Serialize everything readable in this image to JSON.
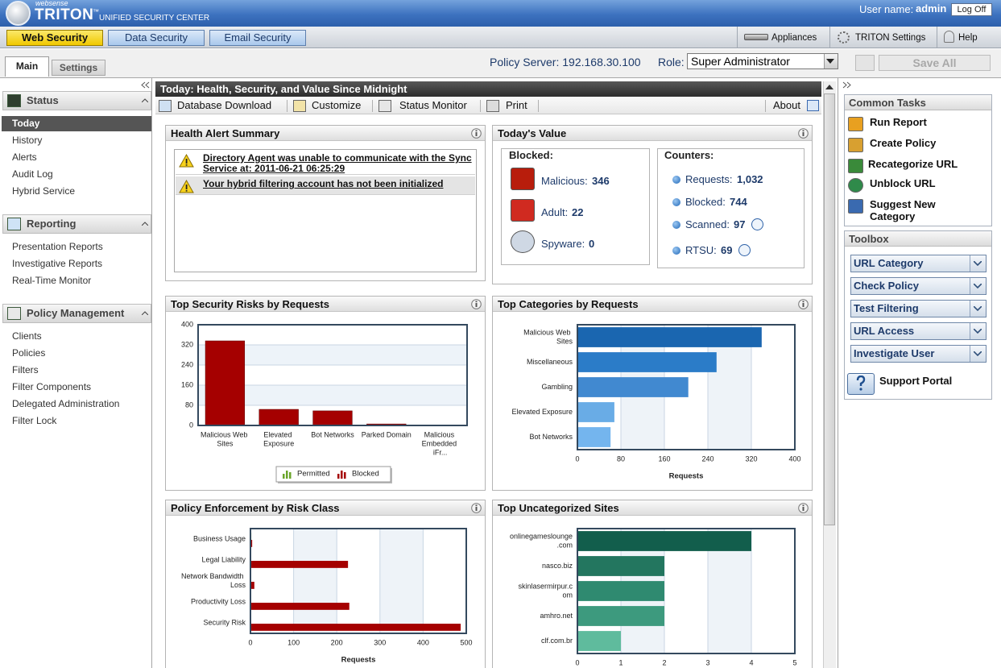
{
  "header": {
    "brand_small": "websense",
    "brand": "TRITON",
    "trademark": "™",
    "product": "UNIFIED SECURITY CENTER",
    "user_label": "User name:",
    "user": "admin",
    "logoff": "Log Off"
  },
  "modules": [
    "Web Security",
    "Data Security",
    "Email Security"
  ],
  "top_links": [
    "Appliances",
    "TRITON Settings",
    "Help"
  ],
  "tabs": [
    "Main",
    "Settings"
  ],
  "policy_server": "Policy Server: 192.168.30.100",
  "role_label": "Role:",
  "role": "Super Administrator",
  "save_all": "Save All",
  "nav": [
    {
      "title": "Status",
      "items": [
        "Today",
        "History",
        "Alerts",
        "Audit Log",
        "Hybrid Service"
      ]
    },
    {
      "title": "Reporting",
      "items": [
        "Presentation Reports",
        "Investigative Reports",
        "Real-Time Monitor"
      ]
    },
    {
      "title": "Policy Management",
      "items": [
        "Clients",
        "Policies",
        "Filters",
        "Filter Components",
        "Delegated Administration",
        "Filter Lock"
      ]
    }
  ],
  "main": {
    "title": "Today: Health, Security, and Value Since Midnight",
    "toolbar": [
      "Database Download",
      "Customize",
      "Status Monitor",
      "Print"
    ],
    "about": "About"
  },
  "health": {
    "title": "Health Alert Summary",
    "alerts": [
      "Directory Agent was unable to communicate with the Sync Service at: 2011-06-21 06:25:29",
      "Your hybrid filtering account has not been initialized"
    ]
  },
  "value": {
    "title": "Today's Value",
    "blocked_title": "Blocked:",
    "blocked": [
      {
        "label": "Malicious:",
        "value": 346
      },
      {
        "label": "Adult:",
        "value": 22
      },
      {
        "label": "Spyware:",
        "value": 0
      }
    ],
    "counters_title": "Counters:",
    "counters": [
      {
        "label": "Requests:",
        "value": "1,032"
      },
      {
        "label": "Blocked:",
        "value": 744
      },
      {
        "label": "Scanned:",
        "value": 97
      },
      {
        "label": "RTSU:",
        "value": 69
      }
    ]
  },
  "chart_data": [
    {
      "type": "bar",
      "title": "Top Security Risks by Requests",
      "categories": [
        "Malicious Web Sites",
        "Elevated Exposure",
        "Bot Networks",
        "Parked Domain",
        "Malicious Embedded iFr..."
      ],
      "series": [
        {
          "name": "Permitted",
          "color": "#6aa52a",
          "values": [
            0,
            0,
            0,
            0,
            0
          ]
        },
        {
          "name": "Blocked",
          "color": "#a50000",
          "values": [
            336,
            64,
            58,
            6,
            0
          ]
        }
      ],
      "ylim": [
        0,
        400
      ],
      "yticks": [
        0,
        80,
        160,
        240,
        320,
        400
      ],
      "grid": true,
      "legend": "bottom"
    },
    {
      "type": "bar",
      "orientation": "horizontal",
      "title": "Top Categories by Requests",
      "categories": [
        "Malicious Web Sites",
        "Miscellaneous",
        "Gambling",
        "Elevated Exposure",
        "Bot Networks"
      ],
      "values": [
        339,
        256,
        204,
        68,
        61
      ],
      "colors": [
        "#1a66b0",
        "#2b7cc8",
        "#4189d0",
        "#69ace6",
        "#74b5ee"
      ],
      "xlim": [
        0,
        400
      ],
      "xticks": [
        0,
        80,
        160,
        240,
        320,
        400
      ],
      "xlabel": "Requests",
      "grid": true
    },
    {
      "type": "bar",
      "orientation": "horizontal",
      "title": "Policy Enforcement by Risk Class",
      "categories": [
        "Business Usage",
        "Legal Liability",
        "Network Bandwidth Loss",
        "Productivity Loss",
        "Security Risk"
      ],
      "series": [
        {
          "color": "#6aa52a",
          "values": [
            2,
            0,
            0,
            0,
            0
          ]
        },
        {
          "color": "#a50000",
          "values": [
            4,
            226,
            9,
            229,
            487
          ]
        }
      ],
      "xlim": [
        0,
        500
      ],
      "xticks": [
        0,
        100,
        200,
        300,
        400,
        500
      ],
      "xlabel": "Requests",
      "grid": true
    },
    {
      "type": "bar",
      "orientation": "horizontal",
      "title": "Top Uncategorized Sites",
      "categories": [
        "onlinegameslounge.com",
        "nasco.biz",
        "skinlasermirpur.com",
        "amhro.net",
        "clf.com.br"
      ],
      "values": [
        4,
        2,
        2,
        2,
        1
      ],
      "colors": [
        "#125e4c",
        "#23765f",
        "#2f8a70",
        "#3d9a7e",
        "#5fbb9d"
      ],
      "xlim": [
        0,
        5
      ],
      "xticks": [
        0,
        1,
        2,
        3,
        4,
        5
      ],
      "grid": true
    }
  ],
  "tasks": {
    "title": "Common Tasks",
    "items": [
      "Run Report",
      "Create Policy",
      "Recategorize URL",
      "Unblock URL",
      "Suggest New Category"
    ]
  },
  "toolbox": {
    "title": "Toolbox",
    "items": [
      "URL Category",
      "Check Policy",
      "Test Filtering",
      "URL Access",
      "Investigate User"
    ],
    "support": "Support Portal"
  }
}
